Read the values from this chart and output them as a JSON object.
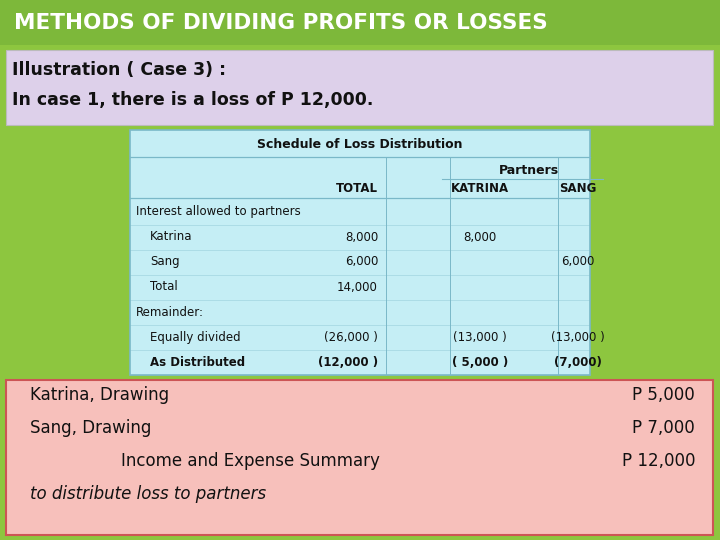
{
  "title": "METHODS OF DIVIDING PROFITS OR LOSSES",
  "title_bg": "#7db83a",
  "title_color": "#ffffff",
  "subtitle_line1": "Illustration ( Case 3) :",
  "subtitle_line2": "In case 1, there is a loss of P 12,000.",
  "subtitle_bg": "#ddd0ea",
  "table_title": "Schedule of Loss Distribution",
  "table_bg": "#c5eef5",
  "table_border": "#7ab8c8",
  "col_header_group": "Partners",
  "rows": [
    {
      "label": "Interest allowed to partners",
      "indent": 0,
      "total": "",
      "katrina": "",
      "sang": "",
      "bold": false
    },
    {
      "label": "Katrina",
      "indent": 1,
      "total": "8,000",
      "katrina": "8,000",
      "sang": "",
      "bold": false
    },
    {
      "label": "Sang",
      "indent": 1,
      "total": "6,000",
      "katrina": "",
      "sang": "6,000",
      "bold": false
    },
    {
      "label": "Total",
      "indent": 1,
      "total": "14,000",
      "katrina": "",
      "sang": "",
      "bold": false
    },
    {
      "label": "Remainder:",
      "indent": 0,
      "total": "",
      "katrina": "",
      "sang": "",
      "bold": false
    },
    {
      "label": "Equally divided",
      "indent": 1,
      "total": "(26,000 )",
      "katrina": "(13,000 )",
      "sang": "(13,000 )",
      "bold": false
    },
    {
      "label": "As Distributed",
      "indent": 1,
      "total": "(12,000 )",
      "katrina": "( 5,000 )",
      "sang": "(7,000)",
      "bold": true
    }
  ],
  "bottom_bg": "#f7c0bb",
  "bottom_border": "#cc5555",
  "bottom_lines": [
    {
      "left": "Katrina, Drawing",
      "right": "P 5,000",
      "italic": false,
      "center_left": false
    },
    {
      "left": "Sang, Drawing",
      "right": "P 7,000",
      "italic": false,
      "center_left": false
    },
    {
      "left": "Income and Expense Summary",
      "right": "P 12,000",
      "italic": false,
      "center_left": true
    },
    {
      "left": "to distribute loss to partners",
      "right": "",
      "italic": true,
      "center_left": false
    }
  ],
  "bg_color": "#8dc63f"
}
